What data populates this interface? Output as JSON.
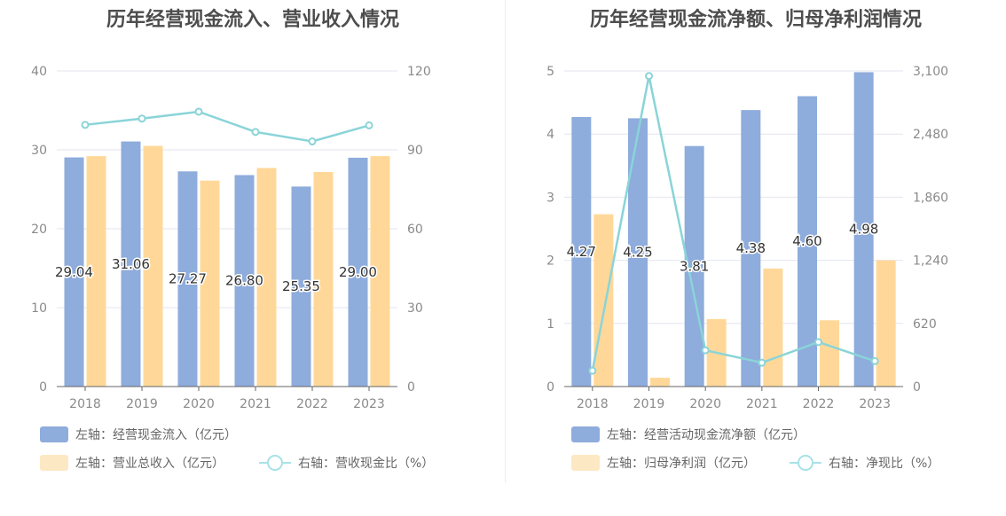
{
  "colors": {
    "bar_primary": "#8eacdc",
    "bar_secondary": "#ffd899",
    "bar_secondary_legend": "#fde8c4",
    "line": "#8ad4d8",
    "line_legend": "#a7e2e6",
    "grid": "#e3e6ef",
    "axis": "#666666"
  },
  "chart_data": [
    {
      "type": "bar",
      "title": "历年经营现金流入、营业收入情况",
      "categories": [
        "2018",
        "2019",
        "2020",
        "2021",
        "2022",
        "2023"
      ],
      "left_axis": {
        "ylim": [
          0,
          40
        ],
        "ticks": [
          "0",
          "10",
          "20",
          "30",
          "40"
        ]
      },
      "right_axis": {
        "ylim": [
          0,
          120
        ],
        "ticks": [
          "0",
          "30",
          "60",
          "90",
          "120"
        ]
      },
      "series": [
        {
          "name": "左轴：经营现金流入（亿元）",
          "type": "bar",
          "axis": "left",
          "values": [
            29.04,
            31.06,
            27.27,
            26.8,
            25.35,
            29.0
          ],
          "labels": [
            "29.04",
            "31.06",
            "27.27",
            "26.80",
            "25.35",
            "29.00"
          ]
        },
        {
          "name": "左轴：营业总收入（亿元）",
          "type": "bar",
          "axis": "left",
          "values": [
            29.2,
            30.5,
            26.1,
            27.7,
            27.2,
            29.2
          ]
        },
        {
          "name": "右轴：营收现金比（%）",
          "type": "line",
          "axis": "right",
          "values": [
            99.5,
            101.9,
            104.5,
            96.8,
            93.2,
            99.3
          ]
        }
      ],
      "legend_position": "bottom"
    },
    {
      "type": "bar",
      "title": "历年经营现金流净额、归母净利润情况",
      "categories": [
        "2018",
        "2019",
        "2020",
        "2021",
        "2022",
        "2023"
      ],
      "left_axis": {
        "ylim": [
          0,
          5
        ],
        "ticks": [
          "0",
          "1",
          "2",
          "3",
          "4",
          "5"
        ]
      },
      "right_axis": {
        "ylim": [
          0,
          3100
        ],
        "ticks": [
          "0",
          "620",
          "1,240",
          "1,860",
          "2,480",
          "3,100"
        ]
      },
      "series": [
        {
          "name": "左轴：经营活动现金流净额（亿元）",
          "type": "bar",
          "axis": "left",
          "values": [
            4.27,
            4.25,
            3.81,
            4.38,
            4.6,
            4.98
          ],
          "labels": [
            "4.27",
            "4.25",
            "3.81",
            "4.38",
            "4.60",
            "4.98"
          ]
        },
        {
          "name": "左轴：归母净利润（亿元）",
          "type": "bar",
          "axis": "left",
          "values": [
            2.73,
            0.14,
            1.07,
            1.87,
            1.05,
            2.0
          ]
        },
        {
          "name": "右轴：净现比（%）",
          "type": "line",
          "axis": "right",
          "values": [
            156,
            3050,
            356,
            234,
            437,
            250
          ]
        }
      ],
      "legend_position": "bottom"
    }
  ]
}
